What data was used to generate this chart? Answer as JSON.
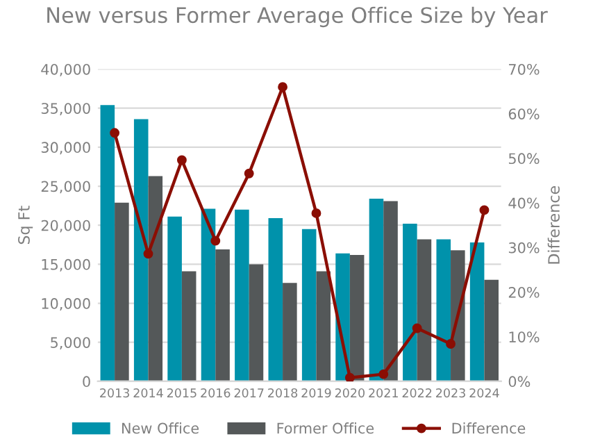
{
  "chart_data": {
    "type": "bar",
    "title": "New versus Former Average Office Size by Year",
    "ylabel": "Sq Ft",
    "y2label": "Difference",
    "categories": [
      "2013",
      "2014",
      "2015",
      "2016",
      "2017",
      "2018",
      "2019",
      "2020",
      "2021",
      "2022",
      "2023",
      "2024"
    ],
    "series": [
      {
        "name": "New Office",
        "color": "#0092ab",
        "values": [
          35400,
          33600,
          21100,
          22100,
          22000,
          20900,
          19500,
          16400,
          23400,
          20200,
          18200,
          17800
        ]
      },
      {
        "name": "Former Office",
        "color": "#545859",
        "values": [
          22900,
          26300,
          14100,
          16900,
          15000,
          12600,
          14100,
          16200,
          23100,
          18200,
          16800,
          13000
        ]
      },
      {
        "name": "Difference",
        "type": "line",
        "axis": "y2",
        "color": "#8b0e04",
        "marker": "circle",
        "line_style": "solid",
        "values": [
          55.7,
          28.6,
          49.6,
          31.5,
          46.6,
          66.0,
          37.7,
          0.8,
          1.6,
          11.9,
          8.4,
          38.4
        ]
      }
    ],
    "ylim": [
      0,
      40000
    ],
    "yticks": [
      {
        "value": 0,
        "label": "0"
      },
      {
        "value": 5000,
        "label": "5,000"
      },
      {
        "value": 10000,
        "label": "10,000"
      },
      {
        "value": 15000,
        "label": "15,000"
      },
      {
        "value": 20000,
        "label": "20,000"
      },
      {
        "value": 25000,
        "label": "25,000"
      },
      {
        "value": 30000,
        "label": "30,000"
      },
      {
        "value": 35000,
        "label": "35,000"
      },
      {
        "value": 40000,
        "label": "40,000"
      }
    ],
    "y2lim": [
      0,
      70
    ],
    "y2ticks": [
      {
        "value": 0,
        "label": "0%"
      },
      {
        "value": 10,
        "label": "10%"
      },
      {
        "value": 20,
        "label": "20%"
      },
      {
        "value": 30,
        "label": "30%"
      },
      {
        "value": 40,
        "label": "40%"
      },
      {
        "value": 50,
        "label": "50%"
      },
      {
        "value": 60,
        "label": "60%"
      },
      {
        "value": 70,
        "label": "70%"
      }
    ],
    "grid": "y",
    "legend": "bottom"
  }
}
